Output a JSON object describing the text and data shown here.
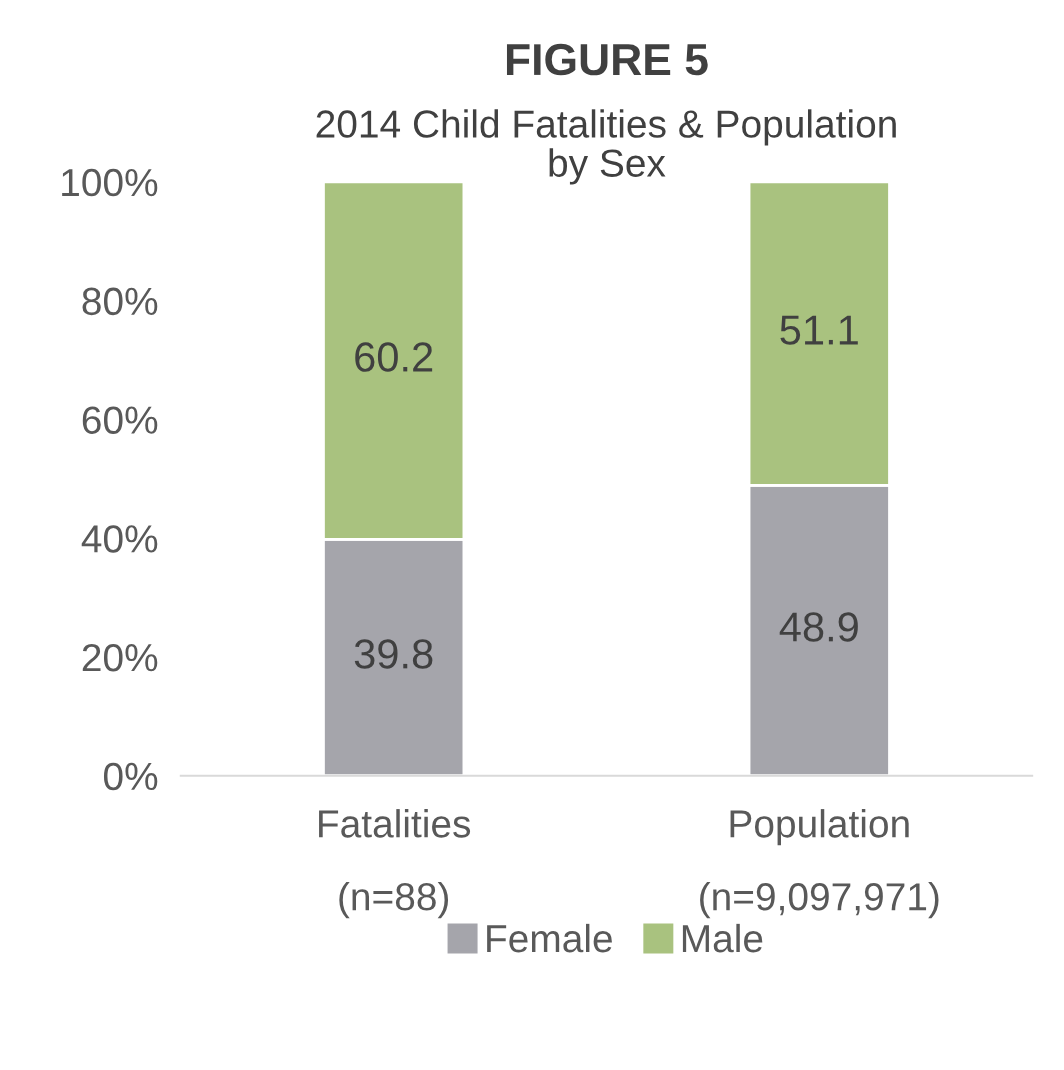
{
  "chart_data": {
    "type": "bar",
    "title": "FIGURE 5",
    "subtitle": "2014 Child Fatalities & Population\nby Sex",
    "categories": [
      "Fatalities\n(n=88)",
      "Population\n(n=9,097,971)"
    ],
    "stacked": true,
    "series": [
      {
        "name": "Female",
        "color": "#a5a5ab",
        "values": [
          39.8,
          48.9
        ]
      },
      {
        "name": "Male",
        "color": "#a9c27f",
        "values": [
          60.2,
          51.1
        ]
      }
    ],
    "ylim": [
      0,
      100
    ],
    "yticks": [
      {
        "value": 0,
        "label": "0%"
      },
      {
        "value": 20,
        "label": "20%"
      },
      {
        "value": 40,
        "label": "40%"
      },
      {
        "value": 60,
        "label": "60%"
      },
      {
        "value": 80,
        "label": "80%"
      },
      {
        "value": 100,
        "label": "100%"
      }
    ],
    "data_labels": true,
    "grid": false,
    "legend": "bottom"
  }
}
